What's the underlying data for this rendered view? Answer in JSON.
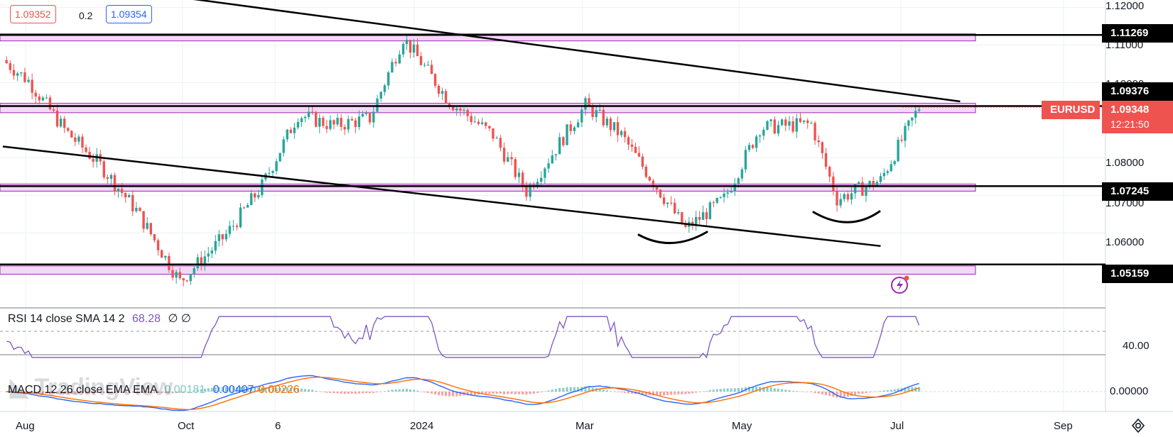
{
  "header": {
    "bid": "1.09352",
    "spread": "0.2",
    "ask": "1.09354"
  },
  "colors": {
    "up": "#26a69a",
    "down": "#ef5350",
    "zone_fill": "#f3d9f7",
    "zone_border": "#9c27b0",
    "rsi": "#7e57c2",
    "macd": "#2962ff",
    "signal": "#ff6d00"
  },
  "price_axis": {
    "ticks": [
      "1.12000",
      "1.11000",
      "1.10000",
      "1.08000",
      "1.07000",
      "1.06000"
    ],
    "levels": [
      {
        "value": "1.11269"
      },
      {
        "value": "1.09376"
      },
      {
        "value": "1.07245"
      },
      {
        "value": "1.05159"
      }
    ],
    "symbol": "EURUSD",
    "last_price": "1.09348",
    "countdown": "12:21:50"
  },
  "time_axis": [
    "Aug",
    "Oct",
    "6",
    "2024",
    "Mar",
    "May",
    "Jul",
    "Sep"
  ],
  "rsi": {
    "legend": "RSI 14 close SMA 14 2",
    "value": "68.28",
    "extra": "∅ ∅",
    "axis_label": "40.00"
  },
  "macd": {
    "legend": "MACD 12 26 close EMA EMA",
    "hist": "0.00181",
    "macd": "0.00407",
    "signal": "0.00226",
    "axis_label": "0.00000"
  },
  "watermark": "TradingView",
  "chart_data": {
    "type": "candlestick",
    "symbol": "EURUSD",
    "timeframe": "daily",
    "x_range": [
      "2023-07-25",
      "2024-07-16"
    ],
    "ylim": [
      1.044,
      1.122
    ],
    "close_path": [
      {
        "date": "2023-07-25",
        "close": 1.106
      },
      {
        "date": "2023-08-04",
        "close": 1.1005
      },
      {
        "date": "2023-08-18",
        "close": 1.0875
      },
      {
        "date": "2023-09-01",
        "close": 1.078
      },
      {
        "date": "2023-09-15",
        "close": 1.066
      },
      {
        "date": "2023-10-02",
        "close": 1.047
      },
      {
        "date": "2023-10-20",
        "close": 1.0595
      },
      {
        "date": "2023-11-03",
        "close": 1.0725
      },
      {
        "date": "2023-11-17",
        "close": 1.0915
      },
      {
        "date": "2023-12-01",
        "close": 1.0885
      },
      {
        "date": "2023-12-15",
        "close": 1.0905
      },
      {
        "date": "2023-12-28",
        "close": 1.112
      },
      {
        "date": "2024-01-15",
        "close": 1.095
      },
      {
        "date": "2024-02-01",
        "close": 1.086
      },
      {
        "date": "2024-02-14",
        "close": 1.071
      },
      {
        "date": "2024-03-08",
        "close": 1.094
      },
      {
        "date": "2024-03-22",
        "close": 1.086
      },
      {
        "date": "2024-04-02",
        "close": 1.075
      },
      {
        "date": "2024-04-16",
        "close": 1.061
      },
      {
        "date": "2024-05-01",
        "close": 1.069
      },
      {
        "date": "2024-05-15",
        "close": 1.088
      },
      {
        "date": "2024-06-04",
        "close": 1.089
      },
      {
        "date": "2024-06-14",
        "close": 1.069
      },
      {
        "date": "2024-07-01",
        "close": 1.074
      },
      {
        "date": "2024-07-16",
        "close": 1.0935
      }
    ],
    "horizontal_levels": [
      1.11269,
      1.09376,
      1.07245,
      1.05159
    ],
    "zones": [
      [
        1.1115,
        1.113
      ],
      [
        1.092,
        1.0945
      ],
      [
        1.0715,
        1.073
      ],
      [
        1.049,
        1.0512
      ]
    ],
    "trendlines": [
      {
        "from": [
          "2023-07-25",
          1.129
        ],
        "to": [
          "2024-08-01",
          1.095
        ]
      },
      {
        "from": [
          "2023-07-25",
          1.083
        ],
        "to": [
          "2024-07-01",
          1.0565
        ]
      }
    ],
    "rsi_range": [
      0,
      100
    ],
    "rsi_last": 68.28,
    "macd_last": {
      "macd": 0.00407,
      "signal": 0.00226,
      "histogram": 0.00181
    }
  }
}
